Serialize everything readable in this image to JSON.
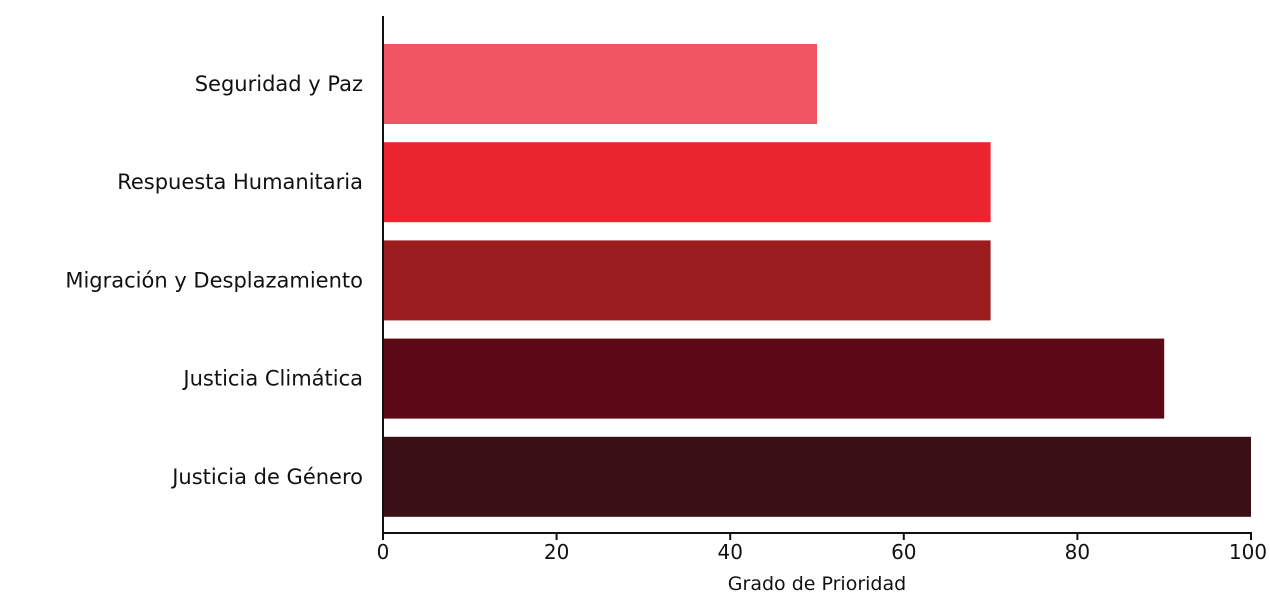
{
  "chart_data": {
    "type": "bar",
    "orientation": "horizontal",
    "categories": [
      "Seguridad y Paz",
      "Respuesta Humanitaria",
      "Migración y Desplazamiento",
      "Justicia Climática",
      "Justicia de Género"
    ],
    "values": [
      50,
      70,
      70,
      90,
      100
    ],
    "colors": [
      "#ef5563",
      "#ea252e",
      "#9c1d20",
      "#5a0915",
      "#3a0f16"
    ],
    "title": "",
    "xlabel": "Grado de Prioridad",
    "ylabel": "",
    "xlim": [
      0,
      100
    ],
    "xticks": [
      "0",
      "20",
      "40",
      "60",
      "80",
      "100"
    ],
    "grid": false,
    "legend": "none"
  }
}
